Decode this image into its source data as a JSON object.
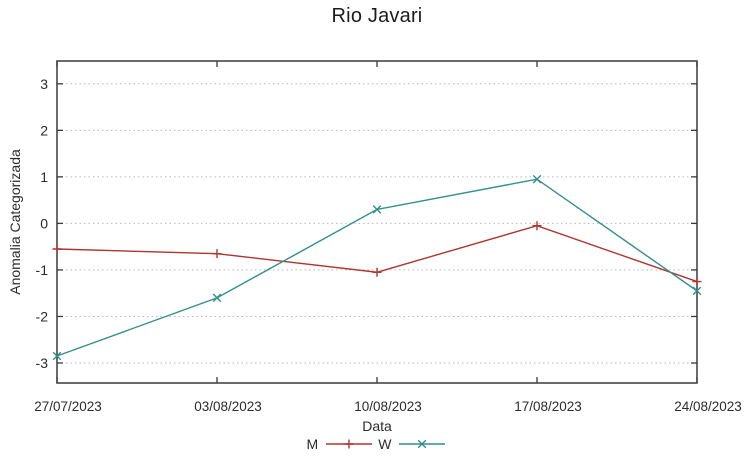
{
  "chart_data": {
    "type": "line",
    "title": "Rio Javari",
    "xlabel": "Data",
    "ylabel": "Anomalia Categorizada",
    "categories": [
      "27/07/2023",
      "03/08/2023",
      "10/08/2023",
      "17/08/2023",
      "24/08/2023"
    ],
    "series": [
      {
        "name": "M",
        "color": "#af352e",
        "marker": "plus",
        "values": [
          -0.55,
          -0.65,
          -1.05,
          -0.05,
          -1.25
        ]
      },
      {
        "name": "W",
        "color": "#31908a",
        "marker": "cross",
        "values": [
          -2.85,
          -1.6,
          0.3,
          0.95,
          -1.45
        ]
      }
    ],
    "yticks": [
      -3,
      -2,
      -1,
      0,
      1,
      2,
      3
    ],
    "ylim": [
      -3.43,
      3.49
    ],
    "grid": "horizontal-dotted",
    "legend_position": "bottom-center",
    "colors": {
      "border": "#3a3a3a",
      "grid": "#b9b9b9",
      "text": "#2b2b2b"
    }
  }
}
